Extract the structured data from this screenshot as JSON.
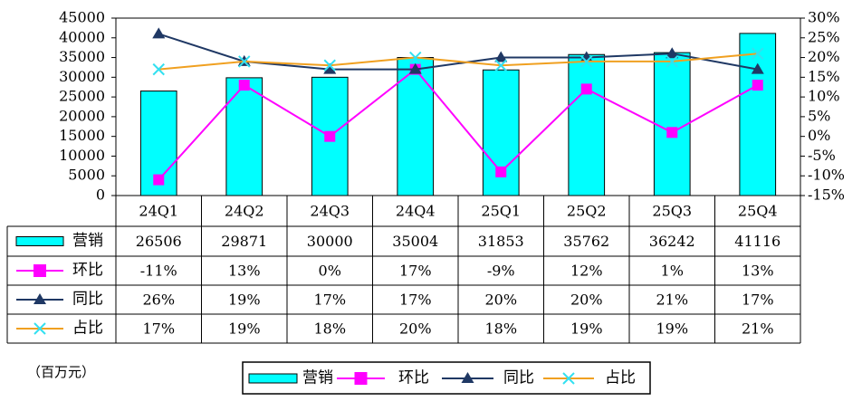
{
  "chart_data": {
    "type": "bar",
    "categories": [
      "24Q1",
      "24Q2",
      "24Q3",
      "24Q4",
      "25Q1",
      "25Q2",
      "25Q3",
      "25Q4"
    ],
    "unit_label": "（百万元）",
    "series": [
      {
        "name": "营销",
        "type": "bar",
        "color": "#00FFFF",
        "values": [
          26506,
          29871,
          30000,
          35004,
          31853,
          35762,
          36242,
          41116
        ]
      },
      {
        "name": "环比",
        "type": "line",
        "axis": "y2",
        "color": "#FF00FF",
        "marker": "square",
        "marker_color": "#FF00FF",
        "values": [
          -11,
          13,
          0,
          17,
          -9,
          12,
          1,
          13
        ],
        "value_labels": [
          "-11%",
          "13%",
          "0%",
          "17%",
          "-9%",
          "12%",
          "1%",
          "13%"
        ]
      },
      {
        "name": "同比",
        "type": "line",
        "axis": "y2",
        "color": "#1F3864",
        "marker": "triangle",
        "marker_color": "#1F3864",
        "values": [
          26,
          19,
          17,
          17,
          20,
          20,
          21,
          17
        ],
        "value_labels": [
          "26%",
          "19%",
          "17%",
          "17%",
          "20%",
          "20%",
          "21%",
          "17%"
        ]
      },
      {
        "name": "占比",
        "type": "line",
        "axis": "y2",
        "color": "#F0A020",
        "marker": "x",
        "marker_color": "#33E0F0",
        "values": [
          17,
          19,
          18,
          20,
          18,
          19,
          19,
          21
        ],
        "value_labels": [
          "17%",
          "19%",
          "18%",
          "20%",
          "18%",
          "19%",
          "19%",
          "21%"
        ]
      }
    ],
    "ylim": [
      0,
      45000
    ],
    "yticks": [
      0,
      5000,
      10000,
      15000,
      20000,
      25000,
      30000,
      35000,
      40000,
      45000
    ],
    "y2lim": [
      -15,
      30
    ],
    "y2ticks": [
      {
        "value": -15,
        "label": "-15%"
      },
      {
        "value": -10,
        "label": "-10%"
      },
      {
        "value": -5,
        "label": "-5%"
      },
      {
        "value": 0,
        "label": "0%"
      },
      {
        "value": 5,
        "label": "5%"
      },
      {
        "value": 10,
        "label": "10%"
      },
      {
        "value": 15,
        "label": "15%"
      },
      {
        "value": 20,
        "label": "20%"
      },
      {
        "value": 25,
        "label": "25%"
      },
      {
        "value": 30,
        "label": "30%"
      }
    ],
    "grid": false
  }
}
